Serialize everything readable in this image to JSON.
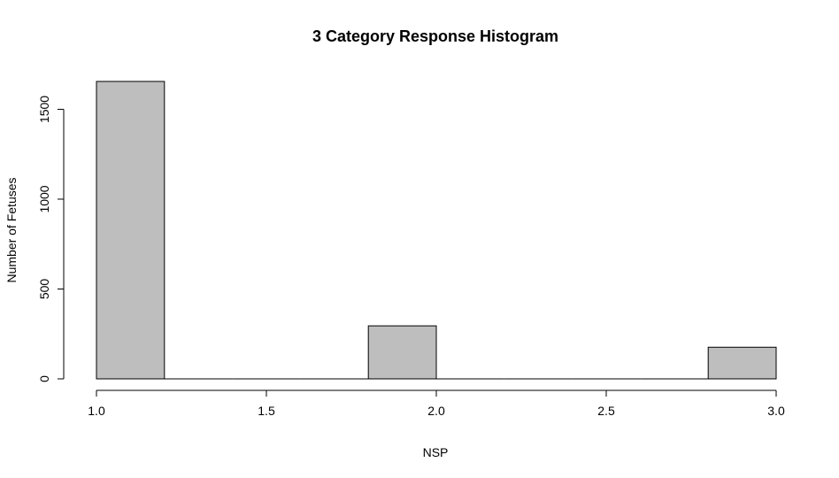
{
  "chart_data": {
    "type": "bar",
    "title": "3 Category Response Histogram",
    "xlabel": "NSP",
    "ylabel": "Number of Fetuses",
    "xlim": [
      1.0,
      3.0
    ],
    "ylim": [
      0,
      1655
    ],
    "x_ticks": [
      1.0,
      1.5,
      2.0,
      2.5,
      3.0
    ],
    "x_tick_labels": [
      "1.0",
      "1.5",
      "2.0",
      "2.5",
      "3.0"
    ],
    "y_ticks": [
      0,
      500,
      1000,
      1500
    ],
    "y_tick_labels": [
      "0",
      "500",
      "1000",
      "1500"
    ],
    "bin_width": 0.2,
    "bins": [
      {
        "start": 1.0,
        "end": 1.2,
        "count": 1655
      },
      {
        "start": 1.2,
        "end": 1.4,
        "count": 0
      },
      {
        "start": 1.4,
        "end": 1.6,
        "count": 0
      },
      {
        "start": 1.6,
        "end": 1.8,
        "count": 0
      },
      {
        "start": 1.8,
        "end": 2.0,
        "count": 295
      },
      {
        "start": 2.0,
        "end": 2.2,
        "count": 0
      },
      {
        "start": 2.2,
        "end": 2.4,
        "count": 0
      },
      {
        "start": 2.4,
        "end": 2.6,
        "count": 0
      },
      {
        "start": 2.6,
        "end": 2.8,
        "count": 0
      },
      {
        "start": 2.8,
        "end": 3.0,
        "count": 176
      }
    ],
    "grid": false,
    "legend": "none",
    "colors": {
      "bar_fill": "#bebebe",
      "bar_stroke": "#000000",
      "axis": "#000000",
      "background": "#ffffff"
    }
  }
}
